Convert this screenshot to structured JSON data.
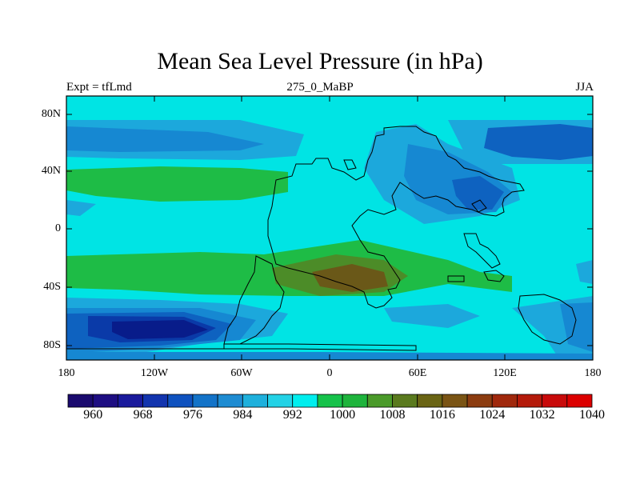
{
  "title": "Mean Sea Level Pressure (in hPa)",
  "subtitle_left": "Expt = tfLmd",
  "subtitle_center": "275_0_MaBP",
  "subtitle_right": "JJA",
  "y_ticks": [
    "80N",
    "40N",
    "0",
    "40S",
    "80S"
  ],
  "x_ticks": [
    "180",
    "120W",
    "60W",
    "0",
    "60E",
    "120E",
    "180"
  ],
  "colorbar": {
    "labels": [
      "960",
      "968",
      "976",
      "984",
      "992",
      "1000",
      "1008",
      "1016",
      "1024",
      "1032",
      "1040"
    ],
    "colors": [
      "#1a0a6e",
      "#1e0e82",
      "#1a1a9c",
      "#1234ae",
      "#0f52bf",
      "#1373c8",
      "#1e8cd2",
      "#1eb0dc",
      "#23d2e6",
      "#00eeee",
      "#16c24a",
      "#1eb43c",
      "#4a9a2a",
      "#5a7a1e",
      "#6a6414",
      "#7a5414",
      "#8c3c10",
      "#a0280c",
      "#b41a0a",
      "#c80a0a",
      "#dc0000"
    ]
  },
  "fill_colors": {
    "ocean": "#00e4e4",
    "high": "#1ebc46",
    "higher": "#4c8c28",
    "highest": "#6a5818",
    "low1": "#1ca8dc",
    "low2": "#1688d2",
    "low3": "#0e62c0",
    "low4": "#0a3aa8",
    "low5": "#081c8a"
  }
}
